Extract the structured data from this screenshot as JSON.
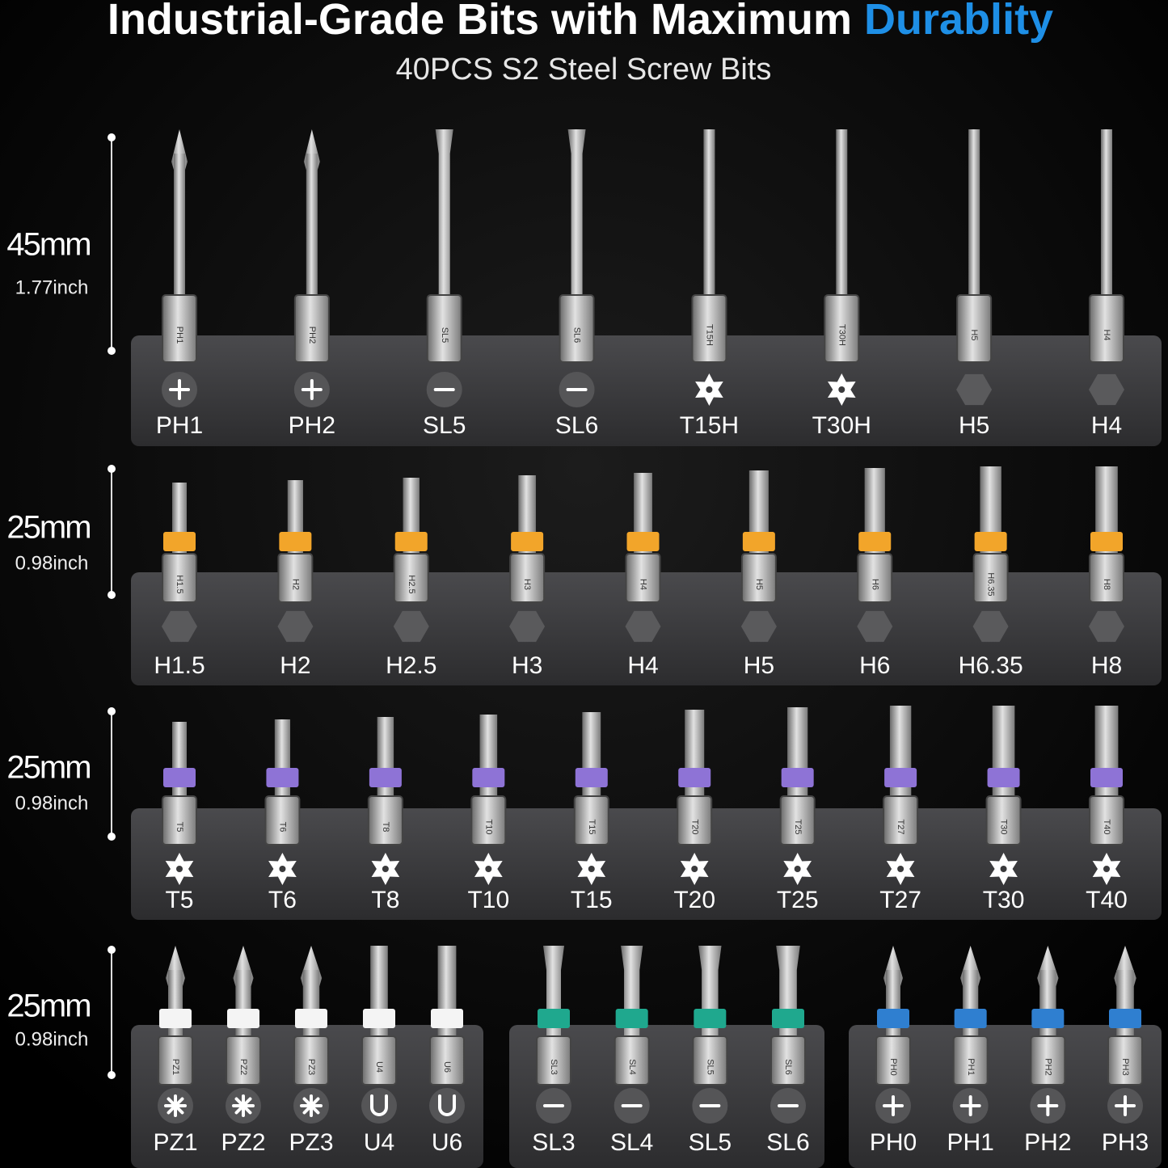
{
  "title": {
    "main": "Industrial-Grade Bits with Maximum",
    "highlight": "Durablity"
  },
  "subtitle": "40PCS S2 Steel Screw Bits",
  "rows": [
    {
      "length": "45mm",
      "inch": "1.77inch",
      "groups": [
        {
          "bits": [
            {
              "label": "PH1",
              "icon": "plus"
            },
            {
              "label": "PH2",
              "icon": "plus"
            },
            {
              "label": "SL5",
              "icon": "minus"
            },
            {
              "label": "SL6",
              "icon": "minus"
            },
            {
              "label": "T15H",
              "icon": "star"
            },
            {
              "label": "T30H",
              "icon": "star"
            },
            {
              "label": "H5",
              "icon": "hex"
            },
            {
              "label": "H4",
              "icon": "hex"
            }
          ]
        }
      ]
    },
    {
      "length": "25mm",
      "inch": "0.98inch",
      "groups": [
        {
          "band_color": "#f2a52a",
          "bits": [
            {
              "label": "H1.5",
              "icon": "hex"
            },
            {
              "label": "H2",
              "icon": "hex"
            },
            {
              "label": "H2.5",
              "icon": "hex"
            },
            {
              "label": "H3",
              "icon": "hex"
            },
            {
              "label": "H4",
              "icon": "hex"
            },
            {
              "label": "H5",
              "icon": "hex"
            },
            {
              "label": "H6",
              "icon": "hex"
            },
            {
              "label": "H6.35",
              "icon": "hex"
            },
            {
              "label": "H8",
              "icon": "hex"
            }
          ]
        }
      ]
    },
    {
      "length": "25mm",
      "inch": "0.98inch",
      "groups": [
        {
          "band_color": "#8e73d6",
          "bits": [
            {
              "label": "T5",
              "icon": "star"
            },
            {
              "label": "T6",
              "icon": "star"
            },
            {
              "label": "T8",
              "icon": "star"
            },
            {
              "label": "T10",
              "icon": "star"
            },
            {
              "label": "T15",
              "icon": "star"
            },
            {
              "label": "T20",
              "icon": "star"
            },
            {
              "label": "T25",
              "icon": "star"
            },
            {
              "label": "T27",
              "icon": "star"
            },
            {
              "label": "T30",
              "icon": "star"
            },
            {
              "label": "T40",
              "icon": "star"
            }
          ]
        }
      ]
    },
    {
      "length": "25mm",
      "inch": "0.98inch",
      "groups": [
        {
          "band_color": "#f4f4f4",
          "bits": [
            {
              "label": "PZ1",
              "icon": "pz"
            },
            {
              "label": "PZ2",
              "icon": "pz"
            },
            {
              "label": "PZ3",
              "icon": "pz"
            },
            {
              "label": "U4",
              "icon": "u"
            },
            {
              "label": "U6",
              "icon": "u"
            }
          ]
        },
        {
          "band_color": "#1fa88e",
          "bits": [
            {
              "label": "SL3",
              "icon": "minus"
            },
            {
              "label": "SL4",
              "icon": "minus"
            },
            {
              "label": "SL5",
              "icon": "minus"
            },
            {
              "label": "SL6",
              "icon": "minus"
            }
          ]
        },
        {
          "band_color": "#2f7fd0",
          "bits": [
            {
              "label": "PH0",
              "icon": "plus"
            },
            {
              "label": "PH1",
              "icon": "plus"
            },
            {
              "label": "PH2",
              "icon": "plus"
            },
            {
              "label": "PH3",
              "icon": "plus"
            }
          ]
        }
      ]
    }
  ]
}
